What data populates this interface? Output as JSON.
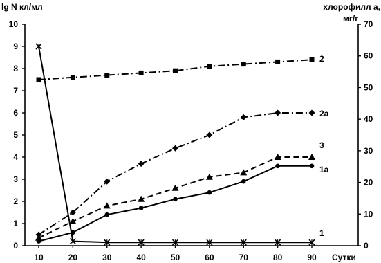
{
  "chart_data": {
    "type": "line",
    "x": [
      10,
      20,
      30,
      40,
      50,
      60,
      70,
      80,
      90
    ],
    "xlabel": "Сутки",
    "y_left_label": "lg N кл/мл",
    "y_right_label_line1": "хлорофилл а,",
    "y_right_label_line2": "мг/г",
    "y_left_lim": [
      0,
      10
    ],
    "y_right_lim": [
      0,
      70
    ],
    "y_left_ticks": [
      "0",
      "1",
      "2",
      "3",
      "4",
      "5",
      "6",
      "7",
      "8",
      "9",
      "10"
    ],
    "y_right_ticks": [
      "0",
      "10",
      "20",
      "30",
      "40",
      "50",
      "60",
      "70"
    ],
    "x_ticks": [
      "10",
      "20",
      "30",
      "40",
      "50",
      "60",
      "70",
      "80",
      "90"
    ],
    "series": [
      {
        "name": "1",
        "axis": "left",
        "style": "solid",
        "marker": "x",
        "values": [
          9.0,
          0.2,
          0.15,
          0.15,
          0.15,
          0.15,
          0.15,
          0.15,
          0.15
        ]
      },
      {
        "name": "1a",
        "axis": "left",
        "style": "solid",
        "marker": "circle",
        "values": [
          0.2,
          0.6,
          1.4,
          1.7,
          2.1,
          2.4,
          2.9,
          3.6,
          3.6
        ]
      },
      {
        "name": "3",
        "axis": "left",
        "style": "dashed",
        "marker": "triangle",
        "values": [
          0.35,
          1.1,
          1.8,
          2.1,
          2.6,
          3.1,
          3.3,
          4.0,
          4.0
        ]
      },
      {
        "name": "2a",
        "axis": "left",
        "style": "dashdot",
        "marker": "diamond",
        "values": [
          0.5,
          1.5,
          2.9,
          3.7,
          4.4,
          5.0,
          5.8,
          6.0,
          6.0
        ]
      },
      {
        "name": "2",
        "axis": "left",
        "style": "dashdot",
        "marker": "square",
        "values": [
          7.5,
          7.6,
          7.7,
          7.8,
          7.9,
          8.1,
          8.2,
          8.3,
          8.4
        ]
      }
    ],
    "series_labels": [
      "2",
      "2a",
      "3",
      "1a",
      "1"
    ]
  }
}
